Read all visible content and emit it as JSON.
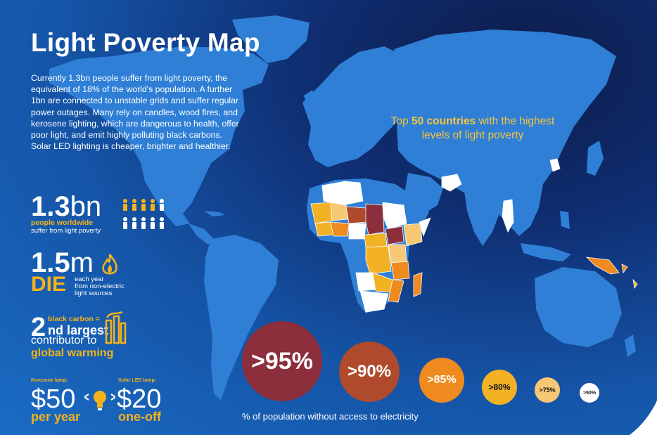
{
  "title": "Light Poverty Map",
  "intro": "Currently 1.3bn people suffer from light poverty, the equivalent of 18% of the world's population. A further 1bn are connected to unstable grids and suffer regular power outages. Many rely on candles, wood fires, and kerosene lighting, which are dangerous to health, offer poor light, and emit highly polluting black carbons. Solar LED lighting is cheaper, brighter and healthier.",
  "stats": {
    "people": {
      "number": "1.3",
      "unit": "bn",
      "line1": "people worldwide",
      "line2": "suffer from light poverty"
    },
    "deaths": {
      "number": "1.5",
      "unit": "m",
      "die": "DIE",
      "line1": "each year",
      "line2": "from  non-electric",
      "line3": "light sources"
    },
    "carbon": {
      "number": "2",
      "suffix": "nd largest",
      "top": "black carbon =",
      "line2": "contributor to",
      "line3": "global warming"
    },
    "kerosene": {
      "label": "Kerosene lamp:",
      "price": "$50",
      "period": "per year"
    },
    "solar": {
      "label": "Solar LED lamp:",
      "price": "$20",
      "period": "one-off"
    }
  },
  "top_label": {
    "pre": "Top ",
    "bold": "50 countries",
    "post": " with the highest levels of light poverty"
  },
  "legend": {
    "caption": "% of population without access to electricity",
    "items": [
      {
        "label": ">95%",
        "color": "#8c2e3b"
      },
      {
        "label": ">90%",
        "color": "#b04a2c"
      },
      {
        "label": ">85%",
        "color": "#ee8a1e"
      },
      {
        "label": ">80%",
        "color": "#f3b224"
      },
      {
        "label": ">75%",
        "color": "#f7c873"
      },
      {
        "label": ">50%",
        "color": "#ffffff"
      }
    ]
  },
  "colors": {
    "accent": "#f6b21a",
    "land": "#2f7fd6",
    "background": "#1554a6"
  },
  "icons": [
    "people-icon",
    "flame-icon",
    "factory-icon",
    "lightbulb-icon",
    "arrow-left-icon",
    "arrow-right-icon"
  ]
}
